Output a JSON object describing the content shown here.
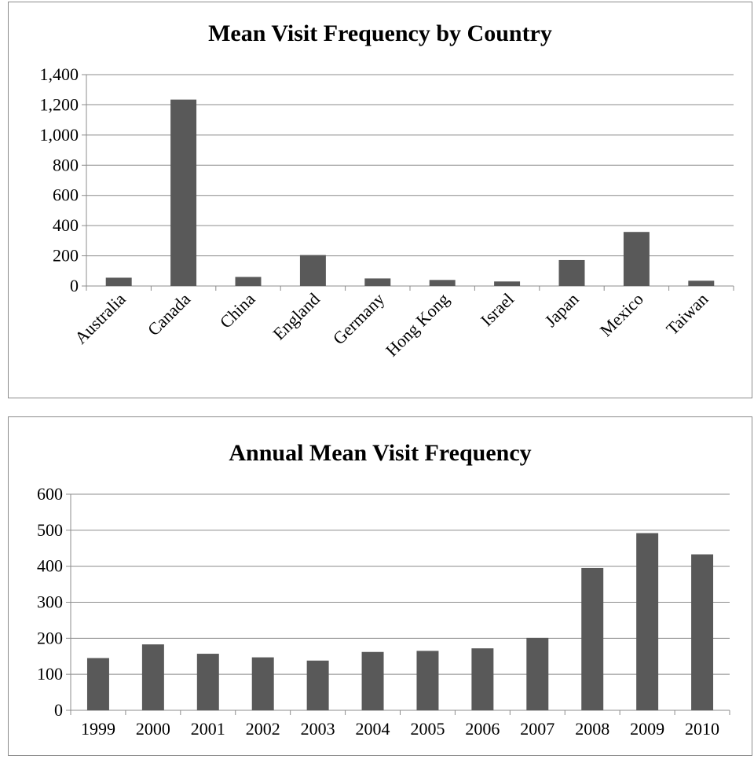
{
  "chart_data": [
    {
      "type": "bar",
      "title": "Mean Visit Frequency by Country",
      "categories": [
        "Australia",
        "Canada",
        "China",
        "England",
        "Germany",
        "Hong Kong",
        "Israel",
        "Japan",
        "Mexico",
        "Taiwan"
      ],
      "values": [
        55,
        1235,
        60,
        205,
        50,
        40,
        30,
        172,
        358,
        35
      ],
      "xlabel": "",
      "ylabel": "",
      "ylim": [
        0,
        1400
      ],
      "yticks": [
        "0",
        "200",
        "400",
        "600",
        "800",
        "1,000",
        "1,200",
        "1,400"
      ],
      "grid": true,
      "legend": "none",
      "bar_color": "#595959"
    },
    {
      "type": "bar",
      "title": "Annual Mean Visit Frequency",
      "categories": [
        "1999",
        "2000",
        "2001",
        "2002",
        "2003",
        "2004",
        "2005",
        "2006",
        "2007",
        "2008",
        "2009",
        "2010"
      ],
      "values": [
        145,
        183,
        157,
        147,
        138,
        162,
        165,
        172,
        201,
        395,
        492,
        433
      ],
      "xlabel": "",
      "ylabel": "",
      "ylim": [
        0,
        600
      ],
      "yticks": [
        "0",
        "100",
        "200",
        "300",
        "400",
        "500",
        "600"
      ],
      "grid": true,
      "legend": "none",
      "bar_color": "#595959"
    }
  ]
}
